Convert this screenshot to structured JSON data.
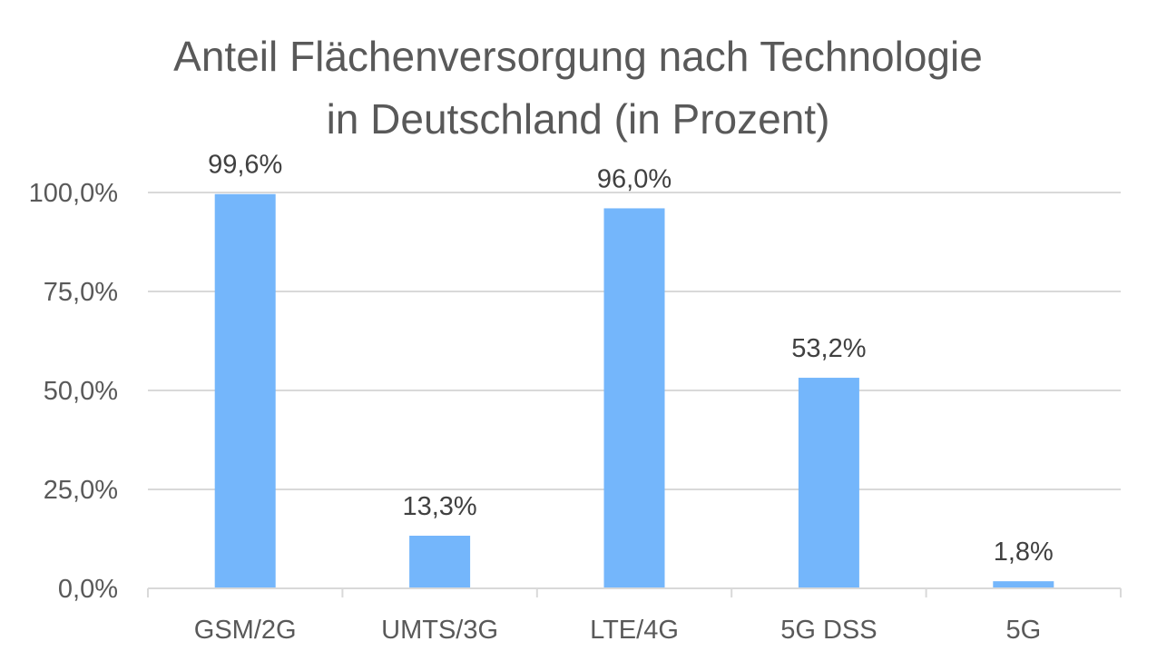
{
  "chart_data": {
    "type": "bar",
    "title_lines": [
      "Anteil Flächenversorgung nach Technologie",
      "in Deutschland (in Prozent)"
    ],
    "title": "Anteil Flächenversorgung nach Technologie in Deutschland (in Prozent)",
    "categories": [
      "GSM/2G",
      "UMTS/3G",
      "LTE/4G",
      "5G DSS",
      "5G"
    ],
    "values": [
      99.6,
      13.3,
      96.0,
      53.2,
      1.8
    ],
    "value_labels": [
      "99,6%",
      "13,3%",
      "96,0%",
      "53,2%",
      "1,8%"
    ],
    "y_ticks": [
      0,
      25,
      50,
      75,
      100
    ],
    "y_tick_labels": [
      "0,0%",
      "25,0%",
      "50,0%",
      "75,0%",
      "100,0%"
    ],
    "ylim": [
      0,
      100
    ],
    "xlabel": "",
    "ylabel": "",
    "grid": true,
    "legend": "none",
    "bar_color": "#74b6fb",
    "text_color": "#595959"
  }
}
